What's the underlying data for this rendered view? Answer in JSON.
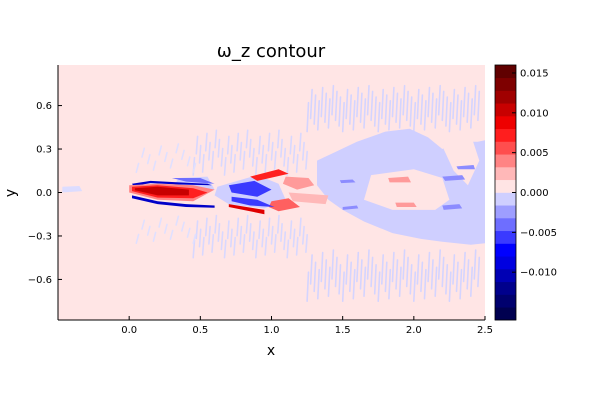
{
  "chart_data": {
    "type": "heatmap",
    "title": "ω_z contour",
    "xlabel": "x",
    "ylabel": "y",
    "xlim": [
      -0.5,
      2.5
    ],
    "ylim": [
      -0.88,
      0.88
    ],
    "xticks": [
      {
        "v": 0.0,
        "label": "0.0"
      },
      {
        "v": 0.5,
        "label": "0.5"
      },
      {
        "v": 1.0,
        "label": "1.0"
      },
      {
        "v": 1.5,
        "label": "1.5"
      },
      {
        "v": 2.0,
        "label": "2.0"
      },
      {
        "v": 2.5,
        "label": "2.5"
      }
    ],
    "yticks": [
      {
        "v": 0.6,
        "label": "0.6"
      },
      {
        "v": 0.3,
        "label": "0.3"
      },
      {
        "v": 0.0,
        "label": "0.0"
      },
      {
        "v": -0.3,
        "label": "−0.3"
      },
      {
        "v": -0.6,
        "label": "−0.6"
      }
    ],
    "colorbar": {
      "vmin": -0.016,
      "vmax": 0.016,
      "ticks": [
        {
          "v": 0.015,
          "label": "0.015"
        },
        {
          "v": 0.01,
          "label": "0.010"
        },
        {
          "v": 0.005,
          "label": "0.005"
        },
        {
          "v": 0.0,
          "label": "0.000"
        },
        {
          "v": -0.005,
          "label": "−0.005"
        },
        {
          "v": -0.01,
          "label": "−0.010"
        }
      ],
      "levels": [
        "#000050",
        "#00006e",
        "#00008c",
        "#0000b4",
        "#0000e0",
        "#0000ff",
        "#3a3aff",
        "#6e6eff",
        "#9e9eff",
        "#cfcfff",
        "#ffe4e4",
        "#ffb8b8",
        "#ff8484",
        "#ff4e4e",
        "#ff1e1e",
        "#ee0000",
        "#c80000",
        "#a00000",
        "#7e0000",
        "#600000"
      ]
    },
    "background_color": "#ffe5e5",
    "regions": [
      {
        "color": "#dcdcff",
        "pts": [
          [
            -0.47,
            0.04
          ],
          [
            -0.35,
            0.045
          ],
          [
            -0.33,
            0.01
          ],
          [
            -0.47,
            0.0
          ]
        ]
      },
      {
        "color": "#d0d0ff",
        "pts": [
          [
            0.35,
            0.1
          ],
          [
            0.55,
            0.11
          ],
          [
            0.6,
            0.02
          ],
          [
            0.45,
            -0.02
          ],
          [
            0.3,
            0.03
          ]
        ]
      },
      {
        "color": "#cfcfff",
        "pts": [
          [
            0.62,
            0.04
          ],
          [
            0.9,
            0.12
          ],
          [
            1.05,
            0.06
          ],
          [
            1.1,
            -0.05
          ],
          [
            0.95,
            -0.11
          ],
          [
            0.7,
            -0.08
          ],
          [
            0.6,
            -0.02
          ]
        ]
      },
      {
        "color": "#cfcfff",
        "pts": [
          [
            1.32,
            0.22
          ],
          [
            1.45,
            0.28
          ],
          [
            1.6,
            0.35
          ],
          [
            1.8,
            0.42
          ],
          [
            1.97,
            0.44
          ],
          [
            2.1,
            0.38
          ],
          [
            2.2,
            0.3
          ],
          [
            2.3,
            0.35
          ],
          [
            2.45,
            0.35
          ],
          [
            2.5,
            0.36
          ],
          [
            2.5,
            -0.35
          ],
          [
            2.4,
            -0.36
          ],
          [
            2.2,
            -0.34
          ],
          [
            2.05,
            -0.32
          ],
          [
            1.85,
            -0.28
          ],
          [
            1.65,
            -0.2
          ],
          [
            1.5,
            -0.12
          ],
          [
            1.4,
            -0.05
          ],
          [
            1.32,
            0.05
          ]
        ]
      },
      {
        "color": "#ffe5e5",
        "pts": [
          [
            1.7,
            0.12
          ],
          [
            2.0,
            0.16
          ],
          [
            2.2,
            0.1
          ],
          [
            2.25,
            -0.05
          ],
          [
            2.15,
            -0.12
          ],
          [
            1.85,
            -0.12
          ],
          [
            1.65,
            -0.05
          ]
        ]
      },
      {
        "color": "#ffe5e5",
        "pts": [
          [
            2.2,
            0.32
          ],
          [
            2.4,
            0.4
          ],
          [
            2.46,
            0.22
          ],
          [
            2.38,
            0.05
          ],
          [
            2.28,
            0.15
          ]
        ]
      },
      {
        "color": "#8c8cff",
        "pts": [
          [
            1.48,
            0.085
          ],
          [
            1.57,
            0.09
          ],
          [
            1.59,
            0.07
          ],
          [
            1.49,
            0.065
          ]
        ]
      },
      {
        "color": "#8c8cff",
        "pts": [
          [
            1.5,
            -0.1
          ],
          [
            1.6,
            -0.09
          ],
          [
            1.61,
            -0.11
          ],
          [
            1.5,
            -0.12
          ]
        ]
      },
      {
        "color": "#8c8cff",
        "pts": [
          [
            2.2,
            0.11
          ],
          [
            2.34,
            0.12
          ],
          [
            2.36,
            0.09
          ],
          [
            2.22,
            0.08
          ]
        ]
      },
      {
        "color": "#8c8cff",
        "pts": [
          [
            2.3,
            0.18
          ],
          [
            2.42,
            0.19
          ],
          [
            2.43,
            0.16
          ],
          [
            2.31,
            0.16
          ]
        ]
      },
      {
        "color": "#8c8cff",
        "pts": [
          [
            2.2,
            -0.09
          ],
          [
            2.32,
            -0.08
          ],
          [
            2.34,
            -0.11
          ],
          [
            2.21,
            -0.12
          ]
        ]
      },
      {
        "color": "#ff9a9a",
        "pts": [
          [
            1.82,
            0.1
          ],
          [
            1.96,
            0.11
          ],
          [
            1.98,
            0.07
          ],
          [
            1.83,
            0.07
          ]
        ]
      },
      {
        "color": "#ff9a9a",
        "pts": [
          [
            1.87,
            -0.07
          ],
          [
            2.0,
            -0.07
          ],
          [
            2.02,
            -0.1
          ],
          [
            1.88,
            -0.1
          ]
        ]
      },
      {
        "color": "#ff9a9a",
        "pts": [
          [
            1.1,
            0.11
          ],
          [
            1.26,
            0.1
          ],
          [
            1.3,
            0.05
          ],
          [
            1.18,
            0.02
          ],
          [
            1.08,
            0.06
          ]
        ]
      },
      {
        "color": "#ffb8b8",
        "pts": [
          [
            1.12,
            0.0
          ],
          [
            1.4,
            -0.02
          ],
          [
            1.38,
            -0.08
          ],
          [
            1.15,
            -0.06
          ]
        ]
      },
      {
        "color": "#ff6060",
        "pts": [
          [
            1.0,
            -0.06
          ],
          [
            1.12,
            -0.04
          ],
          [
            1.2,
            -0.1
          ],
          [
            1.05,
            -0.13
          ],
          [
            0.98,
            -0.1
          ]
        ]
      },
      {
        "color": "#ff2020",
        "pts": [
          [
            0.85,
            0.11
          ],
          [
            1.05,
            0.16
          ],
          [
            1.12,
            0.13
          ],
          [
            0.9,
            0.08
          ]
        ]
      },
      {
        "color": "#e00000",
        "pts": [
          [
            0.7,
            -0.08
          ],
          [
            0.95,
            -0.12
          ],
          [
            0.95,
            -0.15
          ],
          [
            0.7,
            -0.1
          ]
        ]
      },
      {
        "color": "#3a3aff",
        "pts": [
          [
            0.7,
            0.05
          ],
          [
            0.88,
            0.08
          ],
          [
            1.0,
            0.02
          ],
          [
            0.9,
            -0.03
          ],
          [
            0.72,
            0.0
          ]
        ]
      },
      {
        "color": "#3a3aff",
        "pts": [
          [
            0.72,
            -0.03
          ],
          [
            0.9,
            -0.05
          ],
          [
            1.02,
            -0.1
          ],
          [
            0.85,
            -0.09
          ],
          [
            0.72,
            -0.06
          ]
        ]
      },
      {
        "color": "#0000c8",
        "pts": [
          [
            0.02,
            0.06
          ],
          [
            0.15,
            0.08
          ],
          [
            0.35,
            0.07
          ],
          [
            0.55,
            0.06
          ],
          [
            0.58,
            0.05
          ],
          [
            0.35,
            0.055
          ],
          [
            0.15,
            0.065
          ],
          [
            0.03,
            0.045
          ]
        ]
      },
      {
        "color": "#6e6eff",
        "pts": [
          [
            0.3,
            0.1
          ],
          [
            0.5,
            0.1
          ],
          [
            0.6,
            0.06
          ],
          [
            0.4,
            0.075
          ]
        ]
      },
      {
        "color": "#0000c8",
        "pts": [
          [
            0.02,
            -0.02
          ],
          [
            0.2,
            -0.06
          ],
          [
            0.4,
            -0.08
          ],
          [
            0.6,
            -0.09
          ],
          [
            0.6,
            -0.105
          ],
          [
            0.4,
            -0.1
          ],
          [
            0.2,
            -0.08
          ],
          [
            0.02,
            -0.04
          ]
        ]
      },
      {
        "color": "#ff8484",
        "pts": [
          [
            0.0,
            0.05
          ],
          [
            0.2,
            0.06
          ],
          [
            0.45,
            0.05
          ],
          [
            0.6,
            0.02
          ],
          [
            0.45,
            -0.06
          ],
          [
            0.2,
            -0.05
          ],
          [
            0.0,
            0.0
          ]
        ]
      },
      {
        "color": "#ff1e1e",
        "pts": [
          [
            0.02,
            0.04
          ],
          [
            0.2,
            0.05
          ],
          [
            0.45,
            0.03
          ],
          [
            0.55,
            0.0
          ],
          [
            0.45,
            -0.04
          ],
          [
            0.2,
            -0.035
          ],
          [
            0.02,
            0.01
          ]
        ]
      },
      {
        "color": "#c80000",
        "pts": [
          [
            0.04,
            0.03
          ],
          [
            0.2,
            0.04
          ],
          [
            0.42,
            0.02
          ],
          [
            0.42,
            -0.02
          ],
          [
            0.2,
            -0.02
          ],
          [
            0.04,
            0.015
          ]
        ]
      }
    ],
    "streak_fields": [
      {
        "xs": [
          0.45,
          1.25
        ],
        "ys": [
          0.12,
          0.45
        ],
        "step": 0.022,
        "len": 0.12,
        "color": "#d8d8ff"
      },
      {
        "xs": [
          0.45,
          1.25
        ],
        "ys": [
          -0.45,
          -0.14
        ],
        "step": 0.022,
        "len": 0.12,
        "color": "#d8d8ff"
      },
      {
        "xs": [
          1.25,
          2.45
        ],
        "ys": [
          0.42,
          0.75
        ],
        "step": 0.025,
        "len": 0.2,
        "color": "#d4d4ff"
      },
      {
        "xs": [
          1.25,
          2.45
        ],
        "ys": [
          -0.75,
          -0.38
        ],
        "step": 0.025,
        "len": 0.2,
        "color": "#d4d4ff"
      },
      {
        "xs": [
          0.05,
          0.45
        ],
        "ys": [
          0.14,
          0.35
        ],
        "step": 0.04,
        "len": 0.06,
        "color": "#e0e0ff"
      },
      {
        "xs": [
          0.05,
          0.45
        ],
        "ys": [
          -0.35,
          -0.15
        ],
        "step": 0.04,
        "len": 0.06,
        "color": "#e0e0ff"
      }
    ]
  }
}
